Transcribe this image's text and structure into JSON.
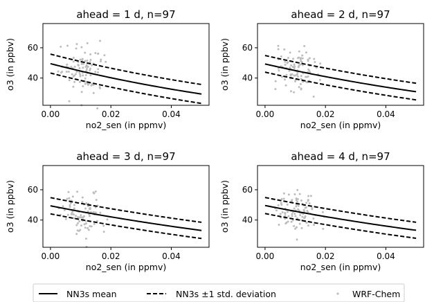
{
  "chart_data": [
    {
      "type": "scatter",
      "title": "ahead = 1 d, n=97",
      "xlabel": "no2_sen (in ppmv)",
      "ylabel": "o3 (in ppbv)",
      "xlim": [
        -0.0025,
        0.0525
      ],
      "ylim": [
        22,
        76
      ],
      "xticks": [
        "0.00",
        "0.02",
        "0.04"
      ],
      "yticks": [
        "40",
        "60"
      ],
      "mean": {
        "a": 49.5,
        "b": -10.4
      },
      "spread": {
        "upper": 6.3,
        "lower": -6.2
      }
    },
    {
      "type": "scatter",
      "title": "ahead = 2 d, n=97",
      "xlabel": "no2_sen (in ppmv)",
      "ylabel": "o3 (in ppbv)",
      "xlim": [
        -0.0025,
        0.0525
      ],
      "ylim": [
        22,
        76
      ],
      "xticks": [
        "0.00",
        "0.02",
        "0.04"
      ],
      "yticks": [
        "40",
        "60"
      ],
      "mean": {
        "a": 49.3,
        "b": -9.3
      },
      "spread": {
        "upper": 5.6,
        "lower": -5.4
      }
    },
    {
      "type": "scatter",
      "title": "ahead = 3 d, n=97",
      "xlabel": "no2_sen (in ppmv)",
      "ylabel": "o3 (in ppbv)",
      "xlim": [
        -0.0025,
        0.0525
      ],
      "ylim": [
        22,
        76
      ],
      "xticks": [
        "0.00",
        "0.02",
        "0.04"
      ],
      "yticks": [
        "40",
        "60"
      ],
      "mean": {
        "a": 49.4,
        "b": -8.0
      },
      "spread": {
        "upper": 5.4,
        "lower": -5.3
      }
    },
    {
      "type": "scatter",
      "title": "ahead = 4 d, n=97",
      "xlabel": "no2_sen (in ppmv)",
      "ylabel": "o3 (in ppbv)",
      "xlim": [
        -0.0025,
        0.0525
      ],
      "ylim": [
        22,
        76
      ],
      "xticks": [
        "0.00",
        "0.02",
        "0.04"
      ],
      "yticks": [
        "40",
        "60"
      ],
      "mean": {
        "a": 49.6,
        "b": -8.0
      },
      "spread": {
        "upper": 5.3,
        "lower": -5.3
      }
    }
  ],
  "legend": {
    "placement": "bottom-center",
    "entries": [
      {
        "label": "NN3s mean",
        "style": "solid"
      },
      {
        "label": "NN3s ±1 std. deviation",
        "style": "dashed"
      },
      {
        "label": "WRF-Chem",
        "style": "dots"
      }
    ]
  },
  "colors": {
    "line": "#000000",
    "points": "#bdbdbd"
  }
}
